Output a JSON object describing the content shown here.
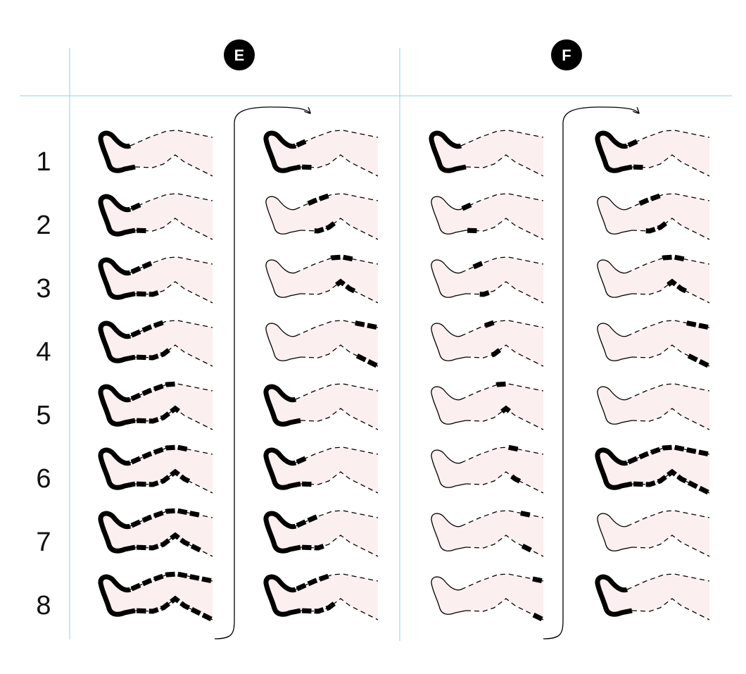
{
  "headers": [
    "E",
    "F"
  ],
  "row_labels": [
    "1",
    "2",
    "3",
    "4",
    "5",
    "6",
    "7",
    "8"
  ],
  "colors": {
    "grid_line": "#8fd3e3",
    "leg_fill": "#fcefef",
    "ink": "#000000"
  },
  "segments_per_leg": 7,
  "columns": [
    {
      "group": "E",
      "legs": [
        {
          "foot": true,
          "segments": []
        },
        {
          "foot": true,
          "segments": [
            1
          ]
        },
        {
          "foot": true,
          "segments": [
            1,
            2
          ]
        },
        {
          "foot": true,
          "segments": [
            1,
            2,
            3
          ]
        },
        {
          "foot": true,
          "segments": [
            1,
            2,
            3,
            4
          ]
        },
        {
          "foot": true,
          "segments": [
            1,
            2,
            3,
            4,
            5
          ]
        },
        {
          "foot": true,
          "segments": [
            1,
            2,
            3,
            4,
            5,
            6
          ]
        },
        {
          "foot": true,
          "segments": [
            1,
            2,
            3,
            4,
            5,
            6,
            7
          ]
        }
      ]
    },
    {
      "group": "E",
      "legs": [
        {
          "foot": true,
          "segments": [
            1
          ]
        },
        {
          "foot": false,
          "segments": [
            2,
            3
          ]
        },
        {
          "foot": false,
          "segments": [
            4,
            5
          ]
        },
        {
          "foot": false,
          "segments": [
            6,
            7
          ]
        },
        {
          "foot": true,
          "segments": []
        },
        {
          "foot": true,
          "segments": [
            1
          ]
        },
        {
          "foot": true,
          "segments": [
            1,
            2
          ]
        },
        {
          "foot": true,
          "segments": [
            1,
            2,
            3
          ]
        }
      ]
    },
    {
      "group": "F",
      "legs": [
        {
          "foot": true,
          "segments": []
        },
        {
          "foot": false,
          "segments": [
            1
          ]
        },
        {
          "foot": false,
          "segments": [
            2
          ]
        },
        {
          "foot": false,
          "segments": [
            3
          ]
        },
        {
          "foot": false,
          "segments": [
            4
          ]
        },
        {
          "foot": false,
          "segments": [
            5
          ]
        },
        {
          "foot": false,
          "segments": [
            6
          ]
        },
        {
          "foot": false,
          "segments": [
            7
          ]
        }
      ]
    },
    {
      "group": "F",
      "legs": [
        {
          "foot": true,
          "segments": [
            1
          ]
        },
        {
          "foot": false,
          "segments": [
            2,
            3
          ]
        },
        {
          "foot": false,
          "segments": [
            4,
            5
          ]
        },
        {
          "foot": false,
          "segments": [
            6,
            7
          ]
        },
        {
          "foot": false,
          "segments": []
        },
        {
          "foot": true,
          "segments": [
            1,
            2,
            3,
            4,
            5,
            6,
            7
          ]
        },
        {
          "foot": false,
          "segments": []
        },
        {
          "foot": true,
          "segments": []
        }
      ]
    }
  ]
}
